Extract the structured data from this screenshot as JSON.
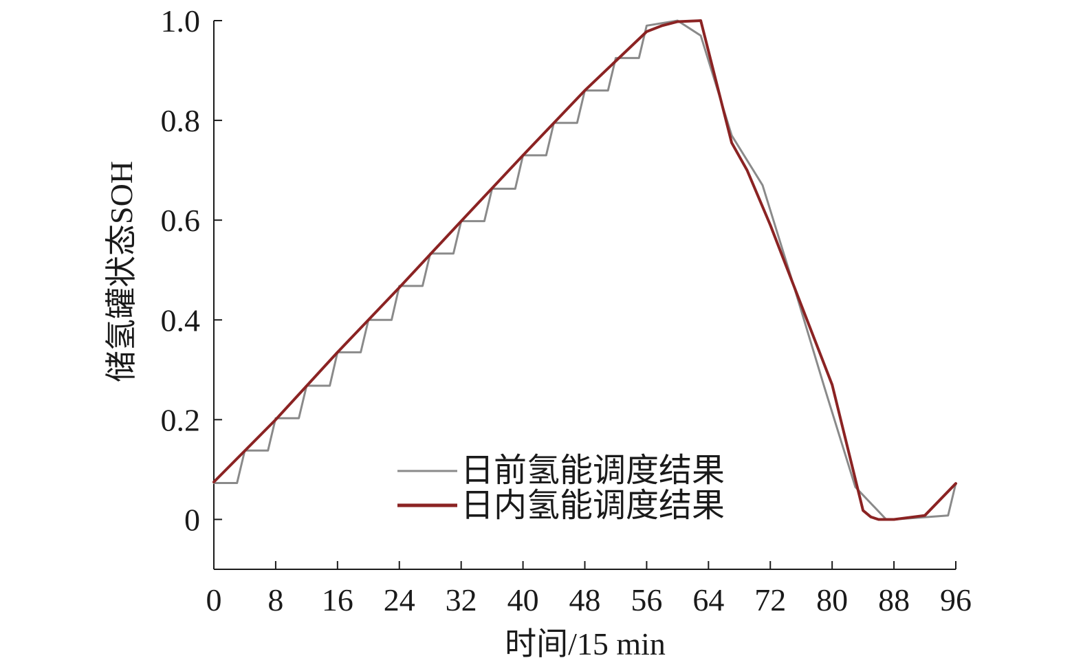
{
  "chart_data": {
    "type": "line",
    "xlabel": "时间/15 min",
    "ylabel": "储氢罐状态SOH",
    "xlim": [
      0,
      96
    ],
    "ylim": [
      -0.1,
      1.0
    ],
    "x_ticks": [
      0,
      8,
      16,
      24,
      32,
      40,
      48,
      56,
      64,
      72,
      80,
      88,
      96
    ],
    "y_ticks": [
      0,
      0.2,
      0.4,
      0.6,
      0.8,
      1.0
    ],
    "y_tick_labels": [
      "0",
      "0.2",
      "0.4",
      "0.6",
      "0.8",
      "1.0"
    ],
    "grid": false,
    "legend_position": "bottom-center",
    "series": [
      {
        "name": "日前氢能调度结果",
        "color": "#8a8a8a",
        "step": true,
        "x": [
          0,
          3,
          4,
          7,
          8,
          11,
          12,
          15,
          16,
          19,
          20,
          23,
          24,
          27,
          28,
          31,
          32,
          35,
          36,
          39,
          40,
          43,
          44,
          47,
          48,
          51,
          52,
          55,
          56,
          60,
          63,
          67,
          71,
          75,
          79,
          83,
          87,
          88,
          95,
          96
        ],
        "values": [
          0.073,
          0.073,
          0.138,
          0.138,
          0.203,
          0.203,
          0.268,
          0.268,
          0.335,
          0.335,
          0.4,
          0.4,
          0.468,
          0.468,
          0.533,
          0.533,
          0.598,
          0.598,
          0.663,
          0.663,
          0.73,
          0.73,
          0.795,
          0.795,
          0.86,
          0.86,
          0.925,
          0.925,
          0.99,
          1.0,
          0.97,
          0.77,
          0.67,
          0.47,
          0.265,
          0.065,
          0.0,
          0.0,
          0.008,
          0.072
        ]
      },
      {
        "name": "日内氢能调度结果",
        "color": "#8b2323",
        "step": false,
        "x": [
          0,
          8,
          16,
          24,
          32,
          40,
          48,
          56,
          58,
          60,
          63,
          67,
          69,
          72,
          76,
          80,
          84,
          85,
          86,
          88,
          92,
          96
        ],
        "values": [
          0.075,
          0.2,
          0.335,
          0.465,
          0.598,
          0.73,
          0.86,
          0.978,
          0.99,
          0.998,
          1.0,
          0.755,
          0.7,
          0.59,
          0.43,
          0.27,
          0.018,
          0.005,
          0.0,
          0.0,
          0.008,
          0.072
        ]
      }
    ]
  }
}
